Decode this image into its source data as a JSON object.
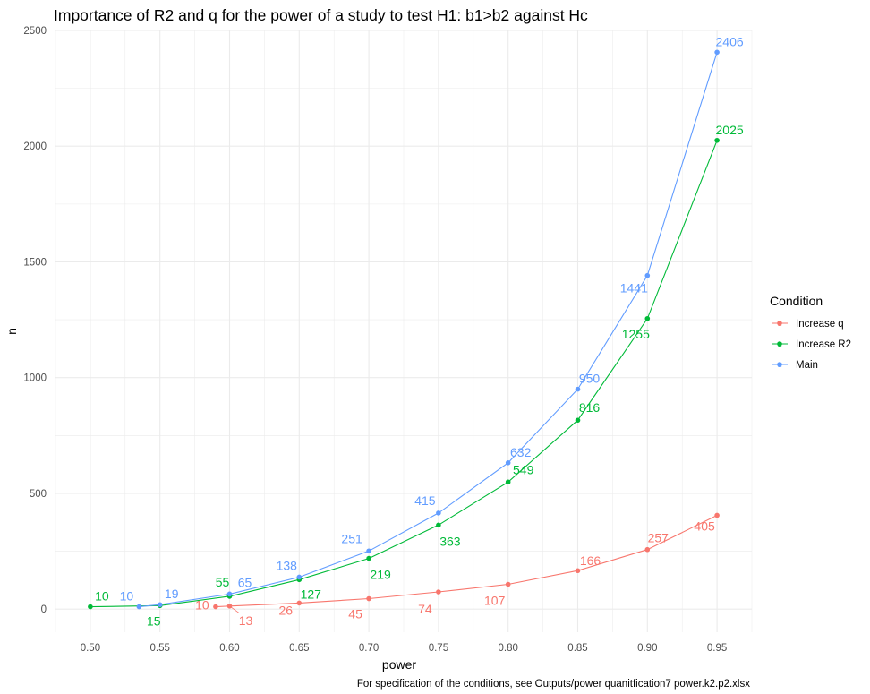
{
  "chart_data": {
    "type": "line",
    "title": "Importance of R2 and q for the power of a study to test H1: b1>b2 against Hc",
    "xlabel": "power",
    "ylabel": "n",
    "caption": "For specification of the conditions, see Outputs/power quanitfication7 power.k2.p2.xlsx",
    "xlim": [
      0.475,
      0.975
    ],
    "ylim": [
      -100,
      2500
    ],
    "x_ticks": [
      "0.50",
      "0.55",
      "0.60",
      "0.65",
      "0.70",
      "0.75",
      "0.80",
      "0.85",
      "0.90",
      "0.95"
    ],
    "y_ticks": [
      "0",
      "500",
      "1000",
      "1500",
      "2000",
      "2500"
    ],
    "grid": true,
    "legend": {
      "title": "Condition",
      "position": "right"
    },
    "series": [
      {
        "name": "Increase q",
        "color": "#F8766D",
        "points": [
          {
            "x": 0.59,
            "y": 10,
            "label": "10"
          },
          {
            "x": 0.6,
            "y": 13,
            "label": "13"
          },
          {
            "x": 0.65,
            "y": 26,
            "label": "26"
          },
          {
            "x": 0.7,
            "y": 45,
            "label": "45"
          },
          {
            "x": 0.75,
            "y": 74,
            "label": "74"
          },
          {
            "x": 0.8,
            "y": 107,
            "label": "107"
          },
          {
            "x": 0.85,
            "y": 166,
            "label": "166"
          },
          {
            "x": 0.9,
            "y": 257,
            "label": "257"
          },
          {
            "x": 0.95,
            "y": 405,
            "label": "405"
          }
        ]
      },
      {
        "name": "Increase R2",
        "color": "#00BA38",
        "points": [
          {
            "x": 0.5,
            "y": 10,
            "label": "10"
          },
          {
            "x": 0.55,
            "y": 15,
            "label": "15"
          },
          {
            "x": 0.6,
            "y": 55,
            "label": "55"
          },
          {
            "x": 0.65,
            "y": 127,
            "label": "127"
          },
          {
            "x": 0.7,
            "y": 219,
            "label": "219"
          },
          {
            "x": 0.75,
            "y": 363,
            "label": "363"
          },
          {
            "x": 0.8,
            "y": 549,
            "label": "549"
          },
          {
            "x": 0.85,
            "y": 816,
            "label": "816"
          },
          {
            "x": 0.9,
            "y": 1255,
            "label": "1255"
          },
          {
            "x": 0.95,
            "y": 2025,
            "label": "2025"
          }
        ]
      },
      {
        "name": "Main",
        "color": "#619CFF",
        "points": [
          {
            "x": 0.535,
            "y": 10,
            "label": "10"
          },
          {
            "x": 0.55,
            "y": 19,
            "label": "19"
          },
          {
            "x": 0.6,
            "y": 65,
            "label": "65"
          },
          {
            "x": 0.65,
            "y": 138,
            "label": "138"
          },
          {
            "x": 0.7,
            "y": 251,
            "label": "251"
          },
          {
            "x": 0.75,
            "y": 415,
            "label": "415"
          },
          {
            "x": 0.8,
            "y": 632,
            "label": "632"
          },
          {
            "x": 0.85,
            "y": 950,
            "label": "950"
          },
          {
            "x": 0.9,
            "y": 1441,
            "label": "1441"
          },
          {
            "x": 0.95,
            "y": 2406,
            "label": "2406"
          }
        ]
      }
    ]
  }
}
